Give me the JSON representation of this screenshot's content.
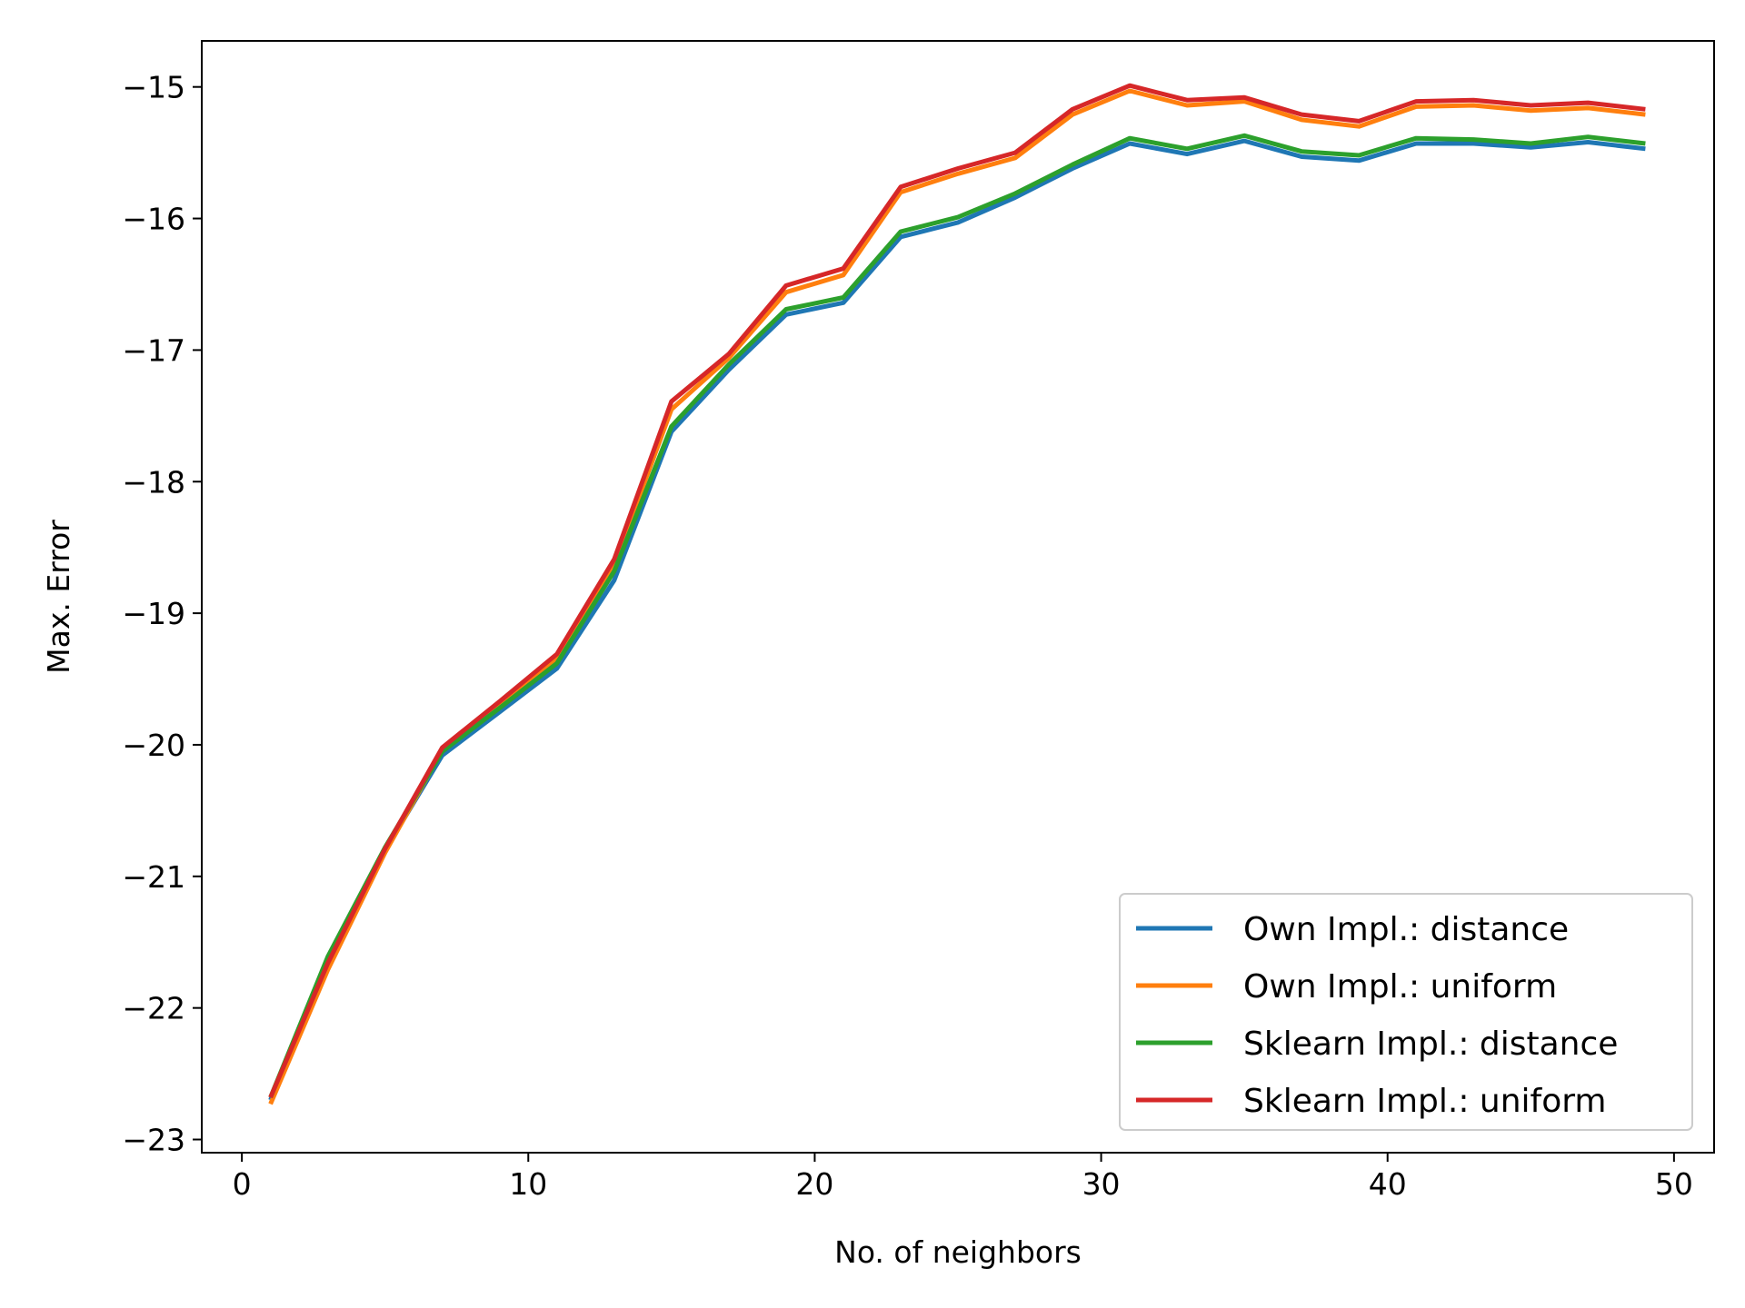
{
  "chart_data": {
    "type": "line",
    "title": "",
    "xlabel": "No. of neighbors",
    "ylabel": "Max. Error",
    "xlim": [
      -1.4,
      51.4
    ],
    "ylim": [
      -23.1,
      -14.65
    ],
    "xticks": [
      0,
      10,
      20,
      30,
      40,
      50
    ],
    "yticks": [
      -23,
      -22,
      -21,
      -20,
      -19,
      -18,
      -17,
      -16,
      -15
    ],
    "xtick_labels": [
      "0",
      "10",
      "20",
      "30",
      "40",
      "50"
    ],
    "ytick_labels": [
      "−23",
      "−22",
      "−21",
      "−20",
      "−19",
      "−18",
      "−17",
      "−16",
      "−15"
    ],
    "grid": false,
    "legend_position": "lower right",
    "x": [
      1,
      3,
      5,
      7,
      9,
      11,
      13,
      15,
      17,
      19,
      21,
      23,
      25,
      27,
      29,
      31,
      33,
      35,
      37,
      39,
      41,
      43,
      45,
      47,
      49
    ],
    "series": [
      {
        "name": "Own Impl.: distance",
        "color": "#1f77b4",
        "values": [
          -22.7,
          -21.65,
          -20.8,
          -20.08,
          -19.75,
          -19.42,
          -18.75,
          -17.62,
          -17.15,
          -16.73,
          -16.64,
          -16.14,
          -16.03,
          -15.84,
          -15.62,
          -15.43,
          -15.51,
          -15.41,
          -15.53,
          -15.56,
          -15.43,
          -15.43,
          -15.46,
          -15.42,
          -15.47
        ]
      },
      {
        "name": "Own Impl.: uniform",
        "color": "#ff7f0e",
        "values": [
          -22.73,
          -21.71,
          -20.82,
          -20.04,
          -19.69,
          -19.35,
          -18.63,
          -17.45,
          -17.06,
          -16.56,
          -16.43,
          -15.8,
          -15.66,
          -15.54,
          -15.21,
          -15.03,
          -15.14,
          -15.11,
          -15.25,
          -15.3,
          -15.15,
          -15.14,
          -15.18,
          -15.16,
          -15.21
        ]
      },
      {
        "name": "Sklearn Impl.: distance",
        "color": "#2ca02c",
        "values": [
          -22.68,
          -21.61,
          -20.78,
          -20.05,
          -19.72,
          -19.38,
          -18.68,
          -17.58,
          -17.11,
          -16.69,
          -16.6,
          -16.1,
          -15.99,
          -15.81,
          -15.59,
          -15.39,
          -15.47,
          -15.37,
          -15.49,
          -15.52,
          -15.39,
          -15.4,
          -15.43,
          -15.38,
          -15.43
        ]
      },
      {
        "name": "Sklearn Impl.: uniform",
        "color": "#d62728",
        "values": [
          -22.68,
          -21.66,
          -20.79,
          -20.02,
          -19.67,
          -19.31,
          -18.59,
          -17.39,
          -17.03,
          -16.51,
          -16.38,
          -15.76,
          -15.62,
          -15.5,
          -15.17,
          -14.99,
          -15.1,
          -15.08,
          -15.21,
          -15.26,
          -15.11,
          -15.1,
          -15.14,
          -15.12,
          -15.17
        ]
      }
    ]
  }
}
